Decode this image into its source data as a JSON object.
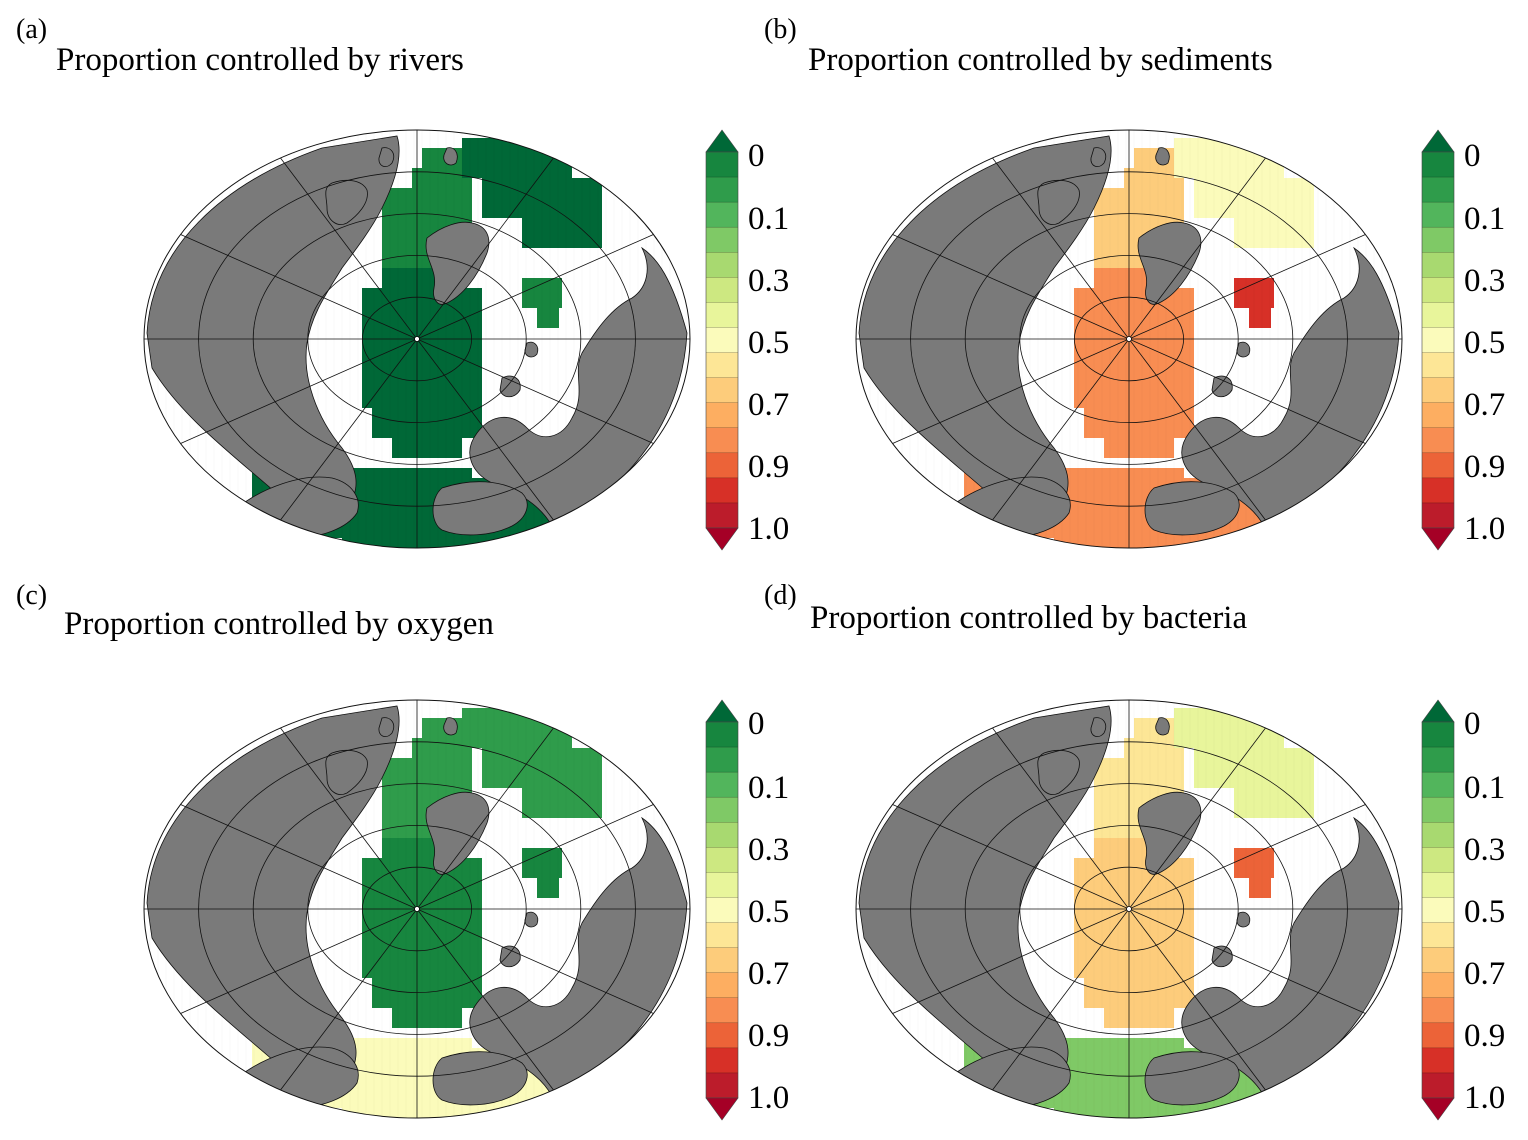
{
  "colors": {
    "land": "#7a7a7a",
    "ocean": "#ffffff",
    "scale": [
      "#006837",
      "#17863f",
      "#2f9c4b",
      "#52b55c",
      "#7fc966",
      "#a8d970",
      "#cde881",
      "#e8f59b",
      "#fbfbbb",
      "#fde696",
      "#fdcc7b",
      "#fdae61",
      "#f88d52",
      "#ec6338",
      "#d73027",
      "#bc1c2b",
      "#a50026"
    ]
  },
  "colorbar": {
    "ticks": [
      "0",
      "0.1",
      "0.3",
      "0.5",
      "0.7",
      "0.9",
      "1.0"
    ]
  },
  "panels": [
    {
      "label": "(a)",
      "title": "Proportion controlled by rivers",
      "fields": {
        "central": 0.03,
        "siberia": 0.05,
        "pacific": 0.03,
        "bay": 0.05,
        "atlantic": 0.03
      }
    },
    {
      "label": "(b)",
      "title": "Proportion controlled by sediments",
      "fields": {
        "central": 0.75,
        "siberia": 0.6,
        "pacific": 0.48,
        "bay": 0.85,
        "atlantic": 0.75
      }
    },
    {
      "label": "(c)",
      "title": "Proportion controlled by oxygen",
      "fields": {
        "central": 0.06,
        "siberia": 0.1,
        "pacific": 0.12,
        "bay": 0.08,
        "atlantic": 0.5
      }
    },
    {
      "label": "(d)",
      "title": "Proportion controlled by bacteria",
      "fields": {
        "central": 0.62,
        "siberia": 0.55,
        "pacific": 0.45,
        "bay": 0.8,
        "atlantic": 0.25
      }
    }
  ]
}
